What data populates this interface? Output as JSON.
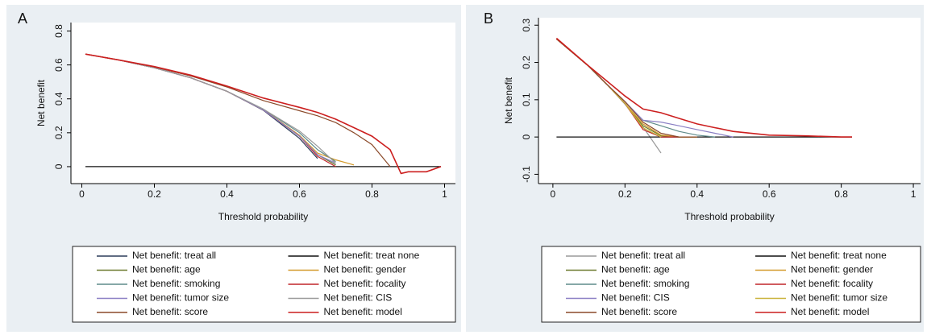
{
  "chart_data": [
    {
      "type": "line",
      "panel_label": "A",
      "xlabel": "Threshold probability",
      "ylabel": "Net benefit",
      "xlim": [
        -0.03,
        1.03
      ],
      "ylim": [
        -0.1,
        0.85
      ],
      "xticks": [
        0,
        0.2,
        0.4,
        0.6,
        0.8,
        1
      ],
      "yticks": [
        0,
        0.2,
        0.4,
        0.6,
        0.8
      ],
      "x": [
        0.01,
        0.1,
        0.2,
        0.3,
        0.4,
        0.5,
        0.6,
        0.65,
        0.7,
        0.75,
        0.8,
        0.85,
        0.88,
        0.9,
        0.95,
        0.99
      ],
      "series": [
        {
          "name": "Net benefit: treat all",
          "color": "#2b3d5a",
          "values": [
            0.664,
            0.63,
            0.583,
            0.524,
            0.445,
            0.333,
            0.167,
            0.048,
            null,
            null,
            null,
            null,
            null,
            null,
            null,
            null
          ]
        },
        {
          "name": "Net benefit: treat none",
          "color": "#111111",
          "values": [
            0,
            0,
            0,
            0,
            0,
            0,
            0,
            0,
            0,
            0,
            0,
            0,
            0,
            0,
            0,
            0
          ]
        },
        {
          "name": "Net benefit: age",
          "color": "#6b7a2e",
          "values": [
            0.664,
            0.63,
            0.583,
            0.524,
            0.445,
            0.335,
            0.18,
            0.07,
            0.01,
            null,
            null,
            null,
            null,
            null,
            null,
            null
          ]
        },
        {
          "name": "Net benefit: gender",
          "color": "#d49a2a",
          "values": [
            0.664,
            0.63,
            0.583,
            0.524,
            0.445,
            0.336,
            0.185,
            0.08,
            0.04,
            0.01,
            null,
            null,
            null,
            null,
            null,
            null
          ]
        },
        {
          "name": "Net benefit: smoking",
          "color": "#5f8b8a",
          "values": [
            0.664,
            0.63,
            0.583,
            0.524,
            0.445,
            0.34,
            0.2,
            0.1,
            0.03,
            null,
            null,
            null,
            null,
            null,
            null,
            null
          ]
        },
        {
          "name": "Net benefit: focality",
          "color": "#c0262a",
          "values": [
            0.664,
            0.63,
            0.583,
            0.524,
            0.445,
            0.335,
            0.18,
            0.06,
            0,
            null,
            null,
            null,
            null,
            null,
            null,
            null
          ]
        },
        {
          "name": "Net benefit: tumor size",
          "color": "#8a7fc4",
          "values": [
            0.664,
            0.63,
            0.583,
            0.524,
            0.445,
            0.335,
            0.18,
            0.07,
            0.02,
            null,
            null,
            null,
            null,
            null,
            null,
            null
          ]
        },
        {
          "name": "Net benefit: CIS",
          "color": "#9a9a9a",
          "values": [
            0.664,
            0.63,
            0.583,
            0.524,
            0.445,
            0.34,
            0.21,
            0.12,
            0.02,
            null,
            null,
            null,
            null,
            null,
            null,
            null
          ]
        },
        {
          "name": "Net benefit: score",
          "color": "#8b4a2a",
          "values": [
            0.664,
            0.63,
            0.588,
            0.535,
            0.47,
            0.39,
            0.33,
            0.3,
            0.26,
            0.2,
            0.13,
            0,
            null,
            null,
            null,
            null
          ]
        },
        {
          "name": "Net benefit: model",
          "color": "#cc1f1f",
          "values": [
            0.664,
            0.63,
            0.59,
            0.54,
            0.475,
            0.405,
            0.35,
            0.32,
            0.28,
            0.23,
            0.18,
            0.1,
            -0.04,
            -0.03,
            -0.03,
            0
          ]
        }
      ]
    },
    {
      "type": "line",
      "panel_label": "B",
      "xlabel": "Threshold probability",
      "ylabel": "Net benefit",
      "xlim": [
        -0.04,
        1.02
      ],
      "ylim": [
        -0.125,
        0.32
      ],
      "xticks": [
        0,
        0.2,
        0.4,
        0.6,
        0.8,
        1
      ],
      "yticks": [
        -0.1,
        0,
        0.1,
        0.2,
        0.3
      ],
      "x": [
        0.01,
        0.1,
        0.15,
        0.2,
        0.25,
        0.3,
        0.35,
        0.4,
        0.45,
        0.5,
        0.6,
        0.7,
        0.8,
        0.83
      ],
      "series": [
        {
          "name": "Net benefit: treat all",
          "color": "#9a9a9a",
          "values": [
            0.263,
            0.189,
            0.141,
            0.088,
            0.027,
            -0.043,
            null,
            null,
            null,
            null,
            null,
            null,
            null,
            null
          ]
        },
        {
          "name": "Net benefit: treat none",
          "color": "#111111",
          "values": [
            0,
            0,
            0,
            0,
            0,
            0,
            0,
            0,
            0,
            0,
            0,
            0,
            0,
            0
          ]
        },
        {
          "name": "Net benefit: age",
          "color": "#6b7a2e",
          "values": [
            0.263,
            0.189,
            0.141,
            0.09,
            0.03,
            0.003,
            0,
            0,
            null,
            null,
            null,
            null,
            null,
            null
          ]
        },
        {
          "name": "Net benefit: gender",
          "color": "#d49a2a",
          "values": [
            0.263,
            0.189,
            0.141,
            0.09,
            0.035,
            0.005,
            0,
            0,
            null,
            null,
            null,
            null,
            null,
            null
          ]
        },
        {
          "name": "Net benefit: smoking",
          "color": "#5f8b8a",
          "values": [
            0.263,
            0.189,
            0.141,
            0.095,
            0.045,
            0.03,
            0.015,
            0.005,
            0,
            null,
            null,
            null,
            null,
            null
          ]
        },
        {
          "name": "Net benefit: focality",
          "color": "#c0262a",
          "values": [
            0.263,
            0.189,
            0.141,
            0.09,
            0.02,
            0,
            0,
            null,
            null,
            null,
            null,
            null,
            null,
            null
          ]
        },
        {
          "name": "Net benefit: CIS",
          "color": "#8a7fc4",
          "values": [
            0.263,
            0.189,
            0.141,
            0.095,
            0.045,
            0.04,
            0.03,
            0.02,
            0.01,
            0,
            null,
            null,
            null,
            null
          ]
        },
        {
          "name": "Net benefit: tumor size",
          "color": "#c9b23a",
          "values": [
            0.263,
            0.189,
            0.141,
            0.09,
            0.025,
            0,
            null,
            null,
            null,
            null,
            null,
            null,
            null,
            null
          ]
        },
        {
          "name": "Net benefit: score",
          "color": "#8b4a2a",
          "values": [
            0.263,
            0.189,
            0.141,
            0.095,
            0.04,
            0.01,
            0,
            0,
            null,
            null,
            null,
            null,
            null,
            null
          ]
        },
        {
          "name": "Net benefit: model",
          "color": "#cc1f1f",
          "values": [
            0.265,
            0.19,
            0.15,
            0.11,
            0.075,
            0.065,
            0.05,
            0.035,
            0.025,
            0.015,
            0.005,
            0.003,
            0,
            0
          ]
        }
      ]
    }
  ]
}
